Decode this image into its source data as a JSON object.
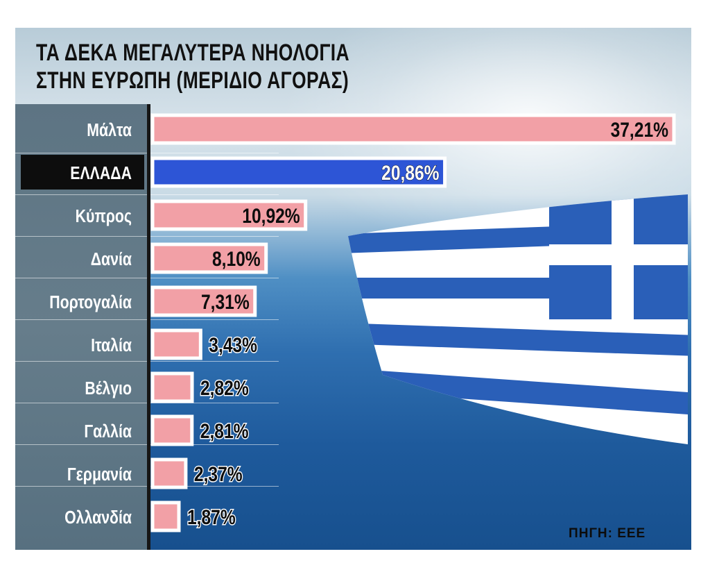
{
  "chart_data": {
    "type": "bar",
    "orientation": "horizontal",
    "title": "ΤΑ ΔΕΚΑ ΜΕΓΑΛΥΤΕΡΑ ΝΗΟΛΟΓΙΑ ΣΤΗΝ ΕΥΡΩΠΗ (ΜΕΡΙΔΙΟ ΑΓΟΡΑΣ)",
    "title_lines": [
      "ΤΑ ΔΕΚΑ ΜΕΓΑΛΥΤΕΡΑ ΝΗΟΛΟΓΙΑ",
      "ΣΤΗΝ ΕΥΡΩΠΗ (ΜΕΡΙΔΙΟ ΑΓΟΡΑΣ)"
    ],
    "categories": [
      "Μάλτα",
      "ΕΛΛΑΔΑ",
      "Κύπρος",
      "Δανία",
      "Πορτογαλία",
      "Ιταλία",
      "Βέλγιο",
      "Γαλλία",
      "Γερμανία",
      "Ολλανδία"
    ],
    "values": [
      37.21,
      20.86,
      10.92,
      8.1,
      7.31,
      3.43,
      2.82,
      2.81,
      2.37,
      1.87
    ],
    "value_labels": [
      "37,21%",
      "20,86%",
      "10,92%",
      "8,10%",
      "7,31%",
      "3,43%",
      "2,82%",
      "2,81%",
      "2,37%",
      "1,87%"
    ],
    "highlight_category": "ΕΛΛΑΔΑ",
    "unit": "%",
    "grid": false,
    "legend": "none",
    "colors": {
      "bar": "#f2a0a6",
      "highlight_bar": "#2d55d6",
      "highlight_label_bg": "#0d0d0d",
      "label_text": "#ffffff"
    },
    "source": "ΠΗΓΗ: ΕΕΕ"
  }
}
